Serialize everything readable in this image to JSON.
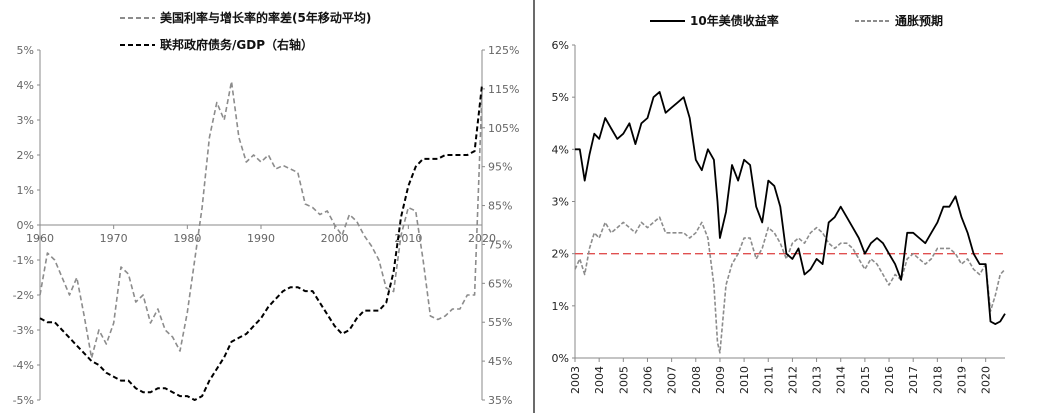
{
  "chart_data": [
    {
      "type": "line",
      "title": "",
      "legend_placement": "top",
      "grid": false,
      "x_ticks": [
        "1960",
        "1970",
        "1980",
        "1990",
        "2000",
        "2010",
        "2020"
      ],
      "xlim": [
        1960,
        2020
      ],
      "ylim_left": [
        -5,
        5
      ],
      "ylim_right": [
        35,
        125
      ],
      "y_ticks_left": [
        "5%",
        "4%",
        "3%",
        "2%",
        "1%",
        "0%",
        "-1%",
        "-2%",
        "-3%",
        "-4%",
        "-5%"
      ],
      "y_ticks_right": [
        "125%",
        "115%",
        "105%",
        "95%",
        "85%",
        "75%",
        "65%",
        "55%",
        "45%",
        "35%"
      ],
      "series": [
        {
          "name": "美国利率与增长率的率差(5年移动平均)",
          "axis": "left",
          "color": "#8c8c8c",
          "dash": "dashed",
          "x": [
            1960,
            1961,
            1962,
            1963,
            1964,
            1965,
            1966,
            1967,
            1968,
            1969,
            1970,
            1971,
            1972,
            1973,
            1974,
            1975,
            1976,
            1977,
            1978,
            1979,
            1980,
            1981,
            1982,
            1983,
            1984,
            1985,
            1986,
            1987,
            1988,
            1989,
            1990,
            1991,
            1992,
            1993,
            1994,
            1995,
            1996,
            1997,
            1998,
            1999,
            2000,
            2001,
            2002,
            2003,
            2004,
            2005,
            2006,
            2007,
            2008,
            2009,
            2010,
            2011,
            2012,
            2013,
            2014,
            2015,
            2016,
            2017,
            2018,
            2019,
            2020
          ],
          "y": [
            -2.0,
            -0.8,
            -1.0,
            -1.5,
            -2.0,
            -1.5,
            -2.6,
            -3.8,
            -3.0,
            -3.4,
            -2.8,
            -1.2,
            -1.4,
            -2.2,
            -2.0,
            -2.8,
            -2.4,
            -3.0,
            -3.2,
            -3.6,
            -2.5,
            -1.0,
            0.5,
            2.5,
            3.5,
            3.0,
            4.1,
            2.5,
            1.8,
            2.0,
            1.8,
            2.0,
            1.6,
            1.7,
            1.6,
            1.5,
            0.6,
            0.5,
            0.3,
            0.4,
            0.0,
            -0.3,
            0.3,
            0.1,
            -0.3,
            -0.6,
            -1.0,
            -1.8,
            -1.9,
            -0.3,
            0.5,
            0.4,
            -1.0,
            -2.6,
            -2.7,
            -2.6,
            -2.4,
            -2.4,
            -2.0,
            -2.0,
            3.8
          ]
        },
        {
          "name": "联邦政府债务/GDP（右轴）",
          "axis": "right",
          "color": "#000000",
          "dash": "dashed",
          "x": [
            1960,
            1961,
            1962,
            1963,
            1964,
            1965,
            1966,
            1967,
            1968,
            1969,
            1970,
            1971,
            1972,
            1973,
            1974,
            1975,
            1976,
            1977,
            1978,
            1979,
            1980,
            1981,
            1982,
            1983,
            1984,
            1985,
            1986,
            1987,
            1988,
            1989,
            1990,
            1991,
            1992,
            1993,
            1994,
            1995,
            1996,
            1997,
            1998,
            1999,
            2000,
            2001,
            2002,
            2003,
            2004,
            2005,
            2006,
            2007,
            2008,
            2009,
            2010,
            2011,
            2012,
            2013,
            2014,
            2015,
            2016,
            2017,
            2018,
            2019,
            2020
          ],
          "y": [
            56,
            55,
            55,
            53,
            51,
            49,
            47,
            45,
            44,
            42,
            41,
            40,
            40,
            38,
            37,
            37,
            38,
            38,
            37,
            36,
            36,
            35,
            36,
            40,
            43,
            46,
            50,
            51,
            52,
            54,
            56,
            59,
            61,
            63,
            64,
            64,
            63,
            63,
            60,
            57,
            54,
            52,
            53,
            56,
            58,
            58,
            58,
            60,
            68,
            82,
            90,
            95,
            97,
            97,
            97,
            98,
            98,
            98,
            98,
            99,
            116
          ]
        }
      ]
    },
    {
      "type": "line",
      "title": "",
      "legend_placement": "top",
      "grid": false,
      "x_ticks": [
        "2003",
        "2004",
        "2005",
        "2006",
        "2007",
        "2008",
        "2009",
        "2010",
        "2011",
        "2012",
        "2013",
        "2014",
        "2015",
        "2016",
        "2017",
        "2018",
        "2019",
        "2020"
      ],
      "xlim": [
        2003,
        2020.8
      ],
      "ylim": [
        0,
        6
      ],
      "y_ticks": [
        "6%",
        "5%",
        "4%",
        "3%",
        "2%",
        "1%",
        "0%"
      ],
      "reference_line": {
        "y": 2.0,
        "color": "#e05050",
        "style": "dashed"
      },
      "series": [
        {
          "name": "10年美债收益率",
          "color": "#000000",
          "dash": "solid",
          "x": [
            2003.0,
            2003.2,
            2003.4,
            2003.6,
            2003.8,
            2004.0,
            2004.25,
            2004.5,
            2004.75,
            2005.0,
            2005.25,
            2005.5,
            2005.75,
            2006.0,
            2006.25,
            2006.5,
            2006.75,
            2007.0,
            2007.25,
            2007.5,
            2007.75,
            2008.0,
            2008.25,
            2008.5,
            2008.75,
            2008.9,
            2009.0,
            2009.25,
            2009.5,
            2009.75,
            2010.0,
            2010.25,
            2010.5,
            2010.75,
            2011.0,
            2011.25,
            2011.5,
            2011.75,
            2012.0,
            2012.25,
            2012.5,
            2012.75,
            2013.0,
            2013.25,
            2013.5,
            2013.75,
            2014.0,
            2014.25,
            2014.5,
            2014.75,
            2015.0,
            2015.25,
            2015.5,
            2015.75,
            2016.0,
            2016.25,
            2016.5,
            2016.75,
            2017.0,
            2017.25,
            2017.5,
            2017.75,
            2018.0,
            2018.25,
            2018.5,
            2018.75,
            2019.0,
            2019.25,
            2019.5,
            2019.75,
            2020.0,
            2020.2,
            2020.4,
            2020.6,
            2020.8
          ],
          "y": [
            4.0,
            4.0,
            3.4,
            3.9,
            4.3,
            4.2,
            4.6,
            4.4,
            4.2,
            4.3,
            4.5,
            4.1,
            4.5,
            4.6,
            5.0,
            5.1,
            4.7,
            4.8,
            4.9,
            5.0,
            4.6,
            3.8,
            3.6,
            4.0,
            3.8,
            3.0,
            2.3,
            2.8,
            3.7,
            3.4,
            3.8,
            3.7,
            2.9,
            2.6,
            3.4,
            3.3,
            2.9,
            2.0,
            1.9,
            2.1,
            1.6,
            1.7,
            1.9,
            1.8,
            2.6,
            2.7,
            2.9,
            2.7,
            2.5,
            2.3,
            2.0,
            2.2,
            2.3,
            2.2,
            2.0,
            1.8,
            1.5,
            2.4,
            2.4,
            2.3,
            2.2,
            2.4,
            2.6,
            2.9,
            2.9,
            3.1,
            2.7,
            2.4,
            2.0,
            1.8,
            1.8,
            0.7,
            0.65,
            0.7,
            0.85
          ]
        },
        {
          "name": "通胀预期",
          "color": "#8c8c8c",
          "dash": "dashed",
          "x": [
            2003.0,
            2003.2,
            2003.4,
            2003.6,
            2003.8,
            2004.0,
            2004.25,
            2004.5,
            2004.75,
            2005.0,
            2005.25,
            2005.5,
            2005.75,
            2006.0,
            2006.25,
            2006.5,
            2006.75,
            2007.0,
            2007.25,
            2007.5,
            2007.75,
            2008.0,
            2008.25,
            2008.5,
            2008.75,
            2008.9,
            2009.0,
            2009.25,
            2009.5,
            2009.75,
            2010.0,
            2010.25,
            2010.5,
            2010.75,
            2011.0,
            2011.25,
            2011.5,
            2011.75,
            2012.0,
            2012.25,
            2012.5,
            2012.75,
            2013.0,
            2013.25,
            2013.5,
            2013.75,
            2014.0,
            2014.25,
            2014.5,
            2014.75,
            2015.0,
            2015.25,
            2015.5,
            2015.75,
            2016.0,
            2016.25,
            2016.5,
            2016.75,
            2017.0,
            2017.25,
            2017.5,
            2017.75,
            2018.0,
            2018.25,
            2018.5,
            2018.75,
            2019.0,
            2019.25,
            2019.5,
            2019.75,
            2020.0,
            2020.2,
            2020.4,
            2020.6,
            2020.8
          ],
          "y": [
            1.7,
            1.9,
            1.6,
            2.1,
            2.4,
            2.3,
            2.6,
            2.4,
            2.5,
            2.6,
            2.5,
            2.4,
            2.6,
            2.5,
            2.6,
            2.7,
            2.4,
            2.4,
            2.4,
            2.4,
            2.3,
            2.4,
            2.6,
            2.3,
            1.4,
            0.3,
            0.1,
            1.4,
            1.8,
            2.0,
            2.3,
            2.3,
            1.9,
            2.1,
            2.5,
            2.4,
            2.2,
            1.9,
            2.2,
            2.3,
            2.2,
            2.4,
            2.5,
            2.4,
            2.2,
            2.1,
            2.2,
            2.2,
            2.1,
            1.9,
            1.7,
            1.9,
            1.8,
            1.6,
            1.4,
            1.6,
            1.5,
            1.9,
            2.0,
            1.9,
            1.8,
            1.9,
            2.1,
            2.1,
            2.1,
            2.0,
            1.8,
            1.9,
            1.7,
            1.6,
            1.8,
            0.9,
            1.2,
            1.6,
            1.7
          ]
        }
      ]
    }
  ]
}
